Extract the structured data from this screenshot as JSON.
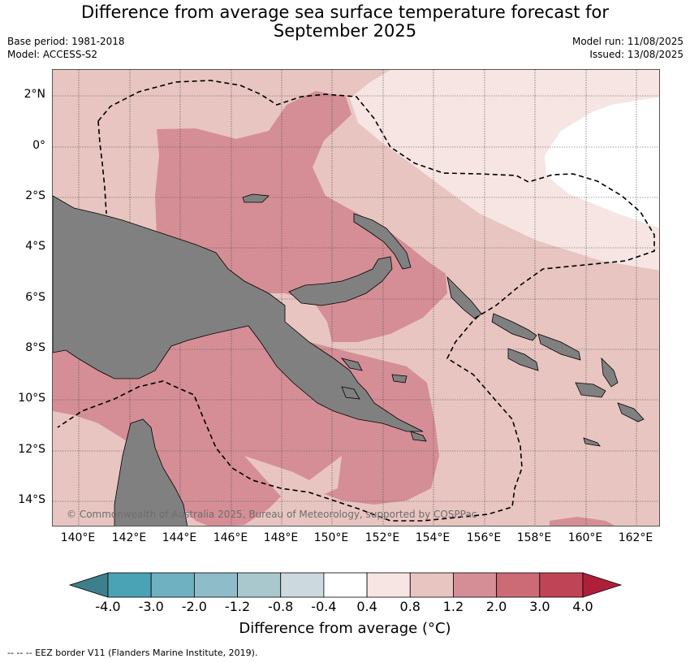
{
  "title_line1": "Difference from average sea surface temperature forecast for",
  "title_line2": "September 2025",
  "base_period": "Base period: 1981-2018",
  "model": "Model: ACCESS-S2",
  "model_run": "Model run: 11/08/2025",
  "issued": "Issued: 13/08/2025",
  "lat_labels": [
    "2°N",
    "0°",
    "2°S",
    "4°S",
    "6°S",
    "8°S",
    "10°S",
    "12°S",
    "14°S"
  ],
  "lon_labels": [
    "140°E",
    "142°E",
    "144°E",
    "146°E",
    "148°E",
    "150°E",
    "152°E",
    "154°E",
    "156°E",
    "158°E",
    "160°E",
    "162°E"
  ],
  "copyright": "© Commonwealth of Australia 2025, Bureau of Meteorology, supported by COSPPac",
  "colorbar": {
    "title": "Difference from average (°C)",
    "ticks": [
      "-4.0",
      "-3.0",
      "-2.0",
      "-1.2",
      "-0.8",
      "-0.4",
      "0.4",
      "0.8",
      "1.2",
      "2.0",
      "3.0",
      "4.0"
    ],
    "colors": [
      "#3e7f8c",
      "#4aa3b5",
      "#6fb0c1",
      "#8fbcc9",
      "#a9c8cd",
      "#ccd9de",
      "#ffffff",
      "#f6e5e3",
      "#e8c5c1",
      "#d58e96",
      "#cc6a75",
      "#bf4455",
      "#b01f3a"
    ]
  },
  "colors": {
    "land": "#808080",
    "anomaly_0_4_0_8": "#f6e5e3",
    "anomaly_0_8_1_2": "#e8c5c1",
    "anomaly_1_2_2_0": "#d58e96"
  },
  "footnote": "-- -- -- EEZ border V11 (Flanders Marine Institute, 2019)."
}
